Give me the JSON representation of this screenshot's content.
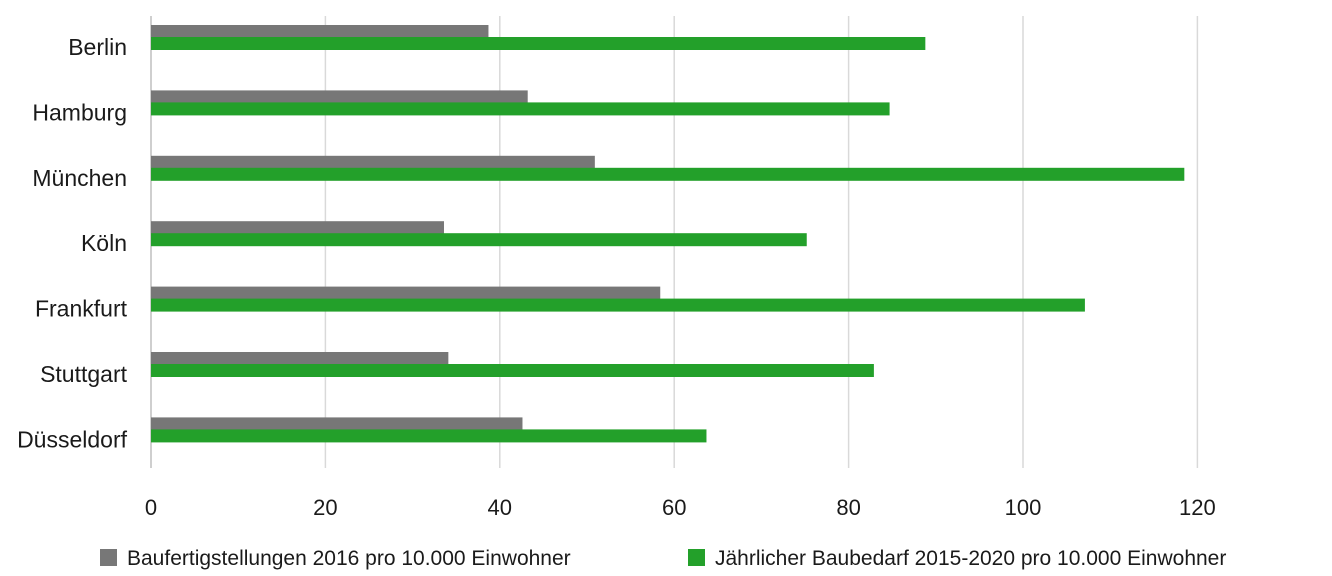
{
  "chart_data": {
    "type": "bar",
    "orientation": "horizontal",
    "title": "",
    "xlabel": "",
    "ylabel": "",
    "categories": [
      "Berlin",
      "Hamburg",
      "München",
      "Köln",
      "Frankfurt",
      "Stuttgart",
      "Düsseldorf"
    ],
    "series": [
      {
        "name": "Baufertigstellungen 2016 pro 10.000 Einwohner",
        "color": "#777777",
        "values": [
          38.7,
          43.2,
          50.9,
          33.6,
          58.4,
          34.1,
          42.6
        ]
      },
      {
        "name": "Jährlicher Baubedarf 2015-2020 pro 10.000 Einwohner",
        "color": "#23a02a",
        "values": [
          88.8,
          84.7,
          118.5,
          75.2,
          107.1,
          82.9,
          63.7
        ]
      }
    ],
    "xticks": [
      "0",
      "20",
      "40",
      "60",
      "80",
      "100",
      "120"
    ],
    "xlim": [
      0,
      130
    ],
    "grid": true,
    "legend_position": "bottom"
  }
}
